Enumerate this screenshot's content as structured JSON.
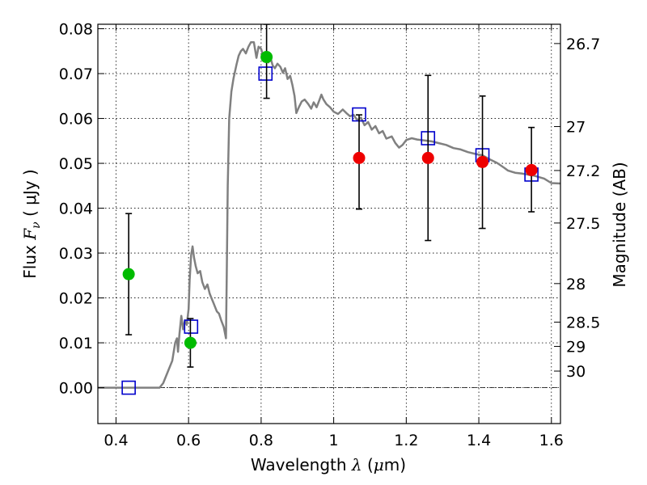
{
  "chart_data": {
    "type": "scatter",
    "xlabel": {
      "text": "Wavelength",
      "symbol": "λ",
      "unit_open": "(",
      "unit_mu": "μ",
      "unit_rest": "m)"
    },
    "ylabel": {
      "text": "Flux",
      "symbol": "F",
      "subscript": "ν",
      "unit": "( μJy )"
    },
    "y2label": "Magnitude (AB)",
    "xlim": [
      0.35,
      1.625
    ],
    "ylim": [
      -0.008,
      0.081
    ],
    "xticks": [
      {
        "value": 0.4,
        "label": "0.4"
      },
      {
        "value": 0.6,
        "label": "0.6"
      },
      {
        "value": 0.8,
        "label": "0.8"
      },
      {
        "value": 1.0,
        "label": "1"
      },
      {
        "value": 1.2,
        "label": "1.2"
      },
      {
        "value": 1.4,
        "label": "1.4"
      },
      {
        "value": 1.6,
        "label": "1.6"
      }
    ],
    "yticks": [
      {
        "value": 0.0,
        "label": "0.00"
      },
      {
        "value": 0.01,
        "label": "0.01"
      },
      {
        "value": 0.02,
        "label": "0.02"
      },
      {
        "value": 0.03,
        "label": "0.03"
      },
      {
        "value": 0.04,
        "label": "0.04"
      },
      {
        "value": 0.05,
        "label": "0.05"
      },
      {
        "value": 0.06,
        "label": "0.06"
      },
      {
        "value": 0.07,
        "label": "0.07"
      },
      {
        "value": 0.08,
        "label": "0.08"
      }
    ],
    "y2ticks": [
      {
        "label": "26.7",
        "flux": 0.0767
      },
      {
        "label": "27",
        "flux": 0.0582
      },
      {
        "label": "27.2",
        "flux": 0.0484
      },
      {
        "label": "27.5",
        "flux": 0.0367
      },
      {
        "label": "28",
        "flux": 0.0232
      },
      {
        "label": "28.5",
        "flux": 0.0146
      },
      {
        "label": "29",
        "flux": 0.0092
      },
      {
        "label": "30",
        "flux": 0.0037
      }
    ],
    "grid": true,
    "zero_line": true,
    "colors": {
      "model": "#808080",
      "green": "#00bb00",
      "red": "#ee0000",
      "square": "#0000cc",
      "errorbar": "#000000",
      "grid": "#000000"
    },
    "series": [
      {
        "type": "line",
        "points": [
          [
            0.35,
            0.0
          ],
          [
            0.52,
            0.0
          ],
          [
            0.53,
            0.001
          ],
          [
            0.545,
            0.004
          ],
          [
            0.555,
            0.006
          ],
          [
            0.563,
            0.01
          ],
          [
            0.568,
            0.011
          ],
          [
            0.571,
            0.008
          ],
          [
            0.575,
            0.012
          ],
          [
            0.58,
            0.016
          ],
          [
            0.585,
            0.013
          ],
          [
            0.59,
            0.015
          ],
          [
            0.595,
            0.014
          ],
          [
            0.6,
            0.0175
          ],
          [
            0.603,
            0.024
          ],
          [
            0.607,
            0.0295
          ],
          [
            0.611,
            0.0315
          ],
          [
            0.615,
            0.029
          ],
          [
            0.62,
            0.027
          ],
          [
            0.625,
            0.0255
          ],
          [
            0.632,
            0.026
          ],
          [
            0.638,
            0.0235
          ],
          [
            0.645,
            0.022
          ],
          [
            0.652,
            0.023
          ],
          [
            0.658,
            0.021
          ],
          [
            0.663,
            0.02
          ],
          [
            0.668,
            0.019
          ],
          [
            0.673,
            0.018
          ],
          [
            0.678,
            0.017
          ],
          [
            0.684,
            0.0165
          ],
          [
            0.69,
            0.015
          ],
          [
            0.697,
            0.0135
          ],
          [
            0.703,
            0.011
          ],
          [
            0.705,
            0.024
          ],
          [
            0.708,
            0.045
          ],
          [
            0.712,
            0.06
          ],
          [
            0.718,
            0.066
          ],
          [
            0.724,
            0.069
          ],
          [
            0.732,
            0.072
          ],
          [
            0.738,
            0.074
          ],
          [
            0.744,
            0.075
          ],
          [
            0.75,
            0.0755
          ],
          [
            0.758,
            0.0745
          ],
          [
            0.765,
            0.076
          ],
          [
            0.772,
            0.077
          ],
          [
            0.78,
            0.077
          ],
          [
            0.787,
            0.0735
          ],
          [
            0.793,
            0.076
          ],
          [
            0.8,
            0.0755
          ],
          [
            0.806,
            0.0738
          ],
          [
            0.812,
            0.0745
          ],
          [
            0.82,
            0.0725
          ],
          [
            0.826,
            0.0735
          ],
          [
            0.832,
            0.0718
          ],
          [
            0.838,
            0.0712
          ],
          [
            0.845,
            0.0722
          ],
          [
            0.853,
            0.0715
          ],
          [
            0.86,
            0.0702
          ],
          [
            0.866,
            0.0712
          ],
          [
            0.873,
            0.0688
          ],
          [
            0.88,
            0.0695
          ],
          [
            0.886,
            0.0675
          ],
          [
            0.892,
            0.065
          ],
          [
            0.897,
            0.0612
          ],
          [
            0.904,
            0.0625
          ],
          [
            0.912,
            0.0638
          ],
          [
            0.92,
            0.0642
          ],
          [
            0.93,
            0.0632
          ],
          [
            0.938,
            0.0622
          ],
          [
            0.945,
            0.0636
          ],
          [
            0.953,
            0.0625
          ],
          [
            0.96,
            0.064
          ],
          [
            0.966,
            0.0653
          ],
          [
            0.972,
            0.0642
          ],
          [
            0.98,
            0.0632
          ],
          [
            0.99,
            0.0625
          ],
          [
            1.0,
            0.0615
          ],
          [
            1.012,
            0.061
          ],
          [
            1.025,
            0.062
          ],
          [
            1.035,
            0.0612
          ],
          [
            1.045,
            0.0605
          ],
          [
            1.055,
            0.0608
          ],
          [
            1.065,
            0.0596
          ],
          [
            1.075,
            0.0602
          ],
          [
            1.085,
            0.0585
          ],
          [
            1.095,
            0.0592
          ],
          [
            1.105,
            0.0575
          ],
          [
            1.115,
            0.0583
          ],
          [
            1.125,
            0.0567
          ],
          [
            1.135,
            0.0572
          ],
          [
            1.145,
            0.0555
          ],
          [
            1.16,
            0.056
          ],
          [
            1.17,
            0.0545
          ],
          [
            1.18,
            0.0535
          ],
          [
            1.19,
            0.0541
          ],
          [
            1.2,
            0.0552
          ],
          [
            1.215,
            0.0556
          ],
          [
            1.23,
            0.0553
          ],
          [
            1.25,
            0.0551
          ],
          [
            1.27,
            0.0549
          ],
          [
            1.29,
            0.0545
          ],
          [
            1.31,
            0.0541
          ],
          [
            1.33,
            0.0534
          ],
          [
            1.35,
            0.0531
          ],
          [
            1.37,
            0.0525
          ],
          [
            1.39,
            0.0521
          ],
          [
            1.41,
            0.0518
          ],
          [
            1.43,
            0.0509
          ],
          [
            1.45,
            0.0501
          ],
          [
            1.47,
            0.049
          ],
          [
            1.48,
            0.0484
          ],
          [
            1.5,
            0.0479
          ],
          [
            1.52,
            0.0477
          ],
          [
            1.55,
            0.0473
          ],
          [
            1.58,
            0.0466
          ],
          [
            1.6,
            0.0456
          ],
          [
            1.625,
            0.0455
          ]
        ]
      },
      {
        "type": "scatter",
        "marker": "circle",
        "color": "green",
        "points": [
          {
            "x": 0.435,
            "y": 0.0253,
            "yerr_low": 0.0118,
            "yerr_high": 0.0388
          },
          {
            "x": 0.605,
            "y": 0.01,
            "yerr_low": 0.0046,
            "yerr_high": 0.0154
          },
          {
            "x": 0.815,
            "y": 0.0737,
            "yerr_low": 0.0645,
            "yerr_high": 0.081
          }
        ]
      },
      {
        "type": "scatter",
        "marker": "circle",
        "color": "red",
        "points": [
          {
            "x": 1.07,
            "y": 0.0512,
            "yerr_low": 0.0398,
            "yerr_high": 0.0608
          },
          {
            "x": 1.26,
            "y": 0.0512,
            "yerr_low": 0.0328,
            "yerr_high": 0.0696
          },
          {
            "x": 1.41,
            "y": 0.0503,
            "yerr_low": 0.0355,
            "yerr_high": 0.065
          },
          {
            "x": 1.545,
            "y": 0.0485,
            "yerr_low": 0.0392,
            "yerr_high": 0.058
          }
        ]
      },
      {
        "type": "scatter",
        "marker": "square",
        "color": "square",
        "points": [
          {
            "x": 0.435,
            "y": 0.0
          },
          {
            "x": 0.607,
            "y": 0.0136
          },
          {
            "x": 0.812,
            "y": 0.07
          },
          {
            "x": 1.07,
            "y": 0.0609
          },
          {
            "x": 1.26,
            "y": 0.0556
          },
          {
            "x": 1.41,
            "y": 0.0518
          },
          {
            "x": 1.545,
            "y": 0.0475
          }
        ]
      }
    ]
  }
}
